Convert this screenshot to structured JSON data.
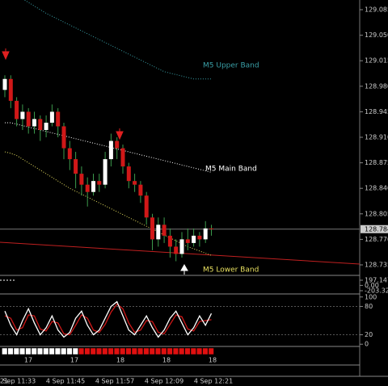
{
  "chart_data": {
    "type": "candlestick",
    "categories": [
      null,
      null,
      null,
      null,
      null,
      null,
      null,
      null,
      null,
      null,
      null,
      null,
      null,
      null,
      null,
      null,
      null,
      null,
      null,
      null,
      null,
      null,
      null,
      null,
      null,
      null,
      null,
      null,
      null,
      null,
      null,
      null,
      null,
      null,
      null,
      null
    ],
    "open": [
      128.975,
      128.99,
      128.96,
      128.935,
      128.945,
      128.925,
      128.935,
      128.92,
      128.93,
      128.945,
      128.925,
      128.895,
      128.88,
      128.86,
      128.845,
      128.835,
      128.85,
      128.845,
      128.88,
      128.905,
      128.895,
      128.87,
      128.85,
      128.845,
      128.83,
      128.8,
      128.77,
      128.79,
      128.775,
      128.76,
      128.75,
      128.77,
      128.765,
      128.775,
      128.77,
      128.785
    ],
    "high": [
      128.995,
      128.995,
      128.965,
      128.955,
      128.95,
      128.945,
      128.94,
      128.94,
      128.955,
      128.95,
      128.93,
      128.905,
      128.89,
      128.87,
      128.855,
      128.86,
      128.86,
      128.89,
      128.915,
      128.91,
      128.9,
      128.875,
      128.86,
      128.85,
      128.835,
      128.805,
      128.8,
      128.8,
      128.785,
      128.77,
      128.78,
      128.785,
      128.785,
      128.78,
      128.795,
      128.79
    ],
    "low": [
      128.965,
      128.95,
      128.925,
      128.92,
      128.915,
      128.915,
      128.905,
      128.91,
      128.925,
      128.91,
      128.88,
      128.865,
      128.84,
      128.83,
      128.815,
      128.83,
      128.835,
      128.84,
      128.87,
      128.88,
      128.86,
      128.84,
      128.835,
      128.82,
      128.79,
      128.755,
      128.76,
      128.765,
      128.745,
      128.74,
      128.745,
      128.755,
      128.76,
      128.76,
      128.765,
      128.775
    ],
    "close": [
      128.99,
      128.96,
      128.935,
      128.945,
      128.925,
      128.935,
      128.92,
      128.93,
      128.945,
      128.925,
      128.895,
      128.88,
      128.86,
      128.845,
      128.835,
      128.85,
      128.845,
      128.88,
      128.905,
      128.895,
      128.87,
      128.85,
      128.845,
      128.83,
      128.8,
      128.77,
      128.79,
      128.775,
      128.76,
      128.75,
      128.77,
      128.765,
      128.775,
      128.77,
      128.785,
      128.784
    ],
    "bands": [
      {
        "name": "M5 Upper Band",
        "color": "#3aa0a8",
        "values": [
          129.11,
          129.108,
          129.105,
          129.1,
          129.095,
          129.09,
          129.085,
          129.08,
          129.076,
          129.072,
          129.068,
          129.064,
          129.06,
          129.056,
          129.052,
          129.048,
          129.044,
          129.04,
          129.036,
          129.032,
          129.028,
          129.024,
          129.02,
          129.016,
          129.012,
          129.008,
          129.004,
          129.0,
          128.998,
          128.996,
          128.994,
          128.992,
          128.99,
          128.99,
          128.99,
          128.99
        ]
      },
      {
        "name": "M5 Main Band",
        "color": "#ffffff",
        "values": [
          128.93,
          128.93,
          128.928,
          128.926,
          128.924,
          128.922,
          128.92,
          128.918,
          128.916,
          128.914,
          128.912,
          128.91,
          128.908,
          128.906,
          128.904,
          128.902,
          128.9,
          128.898,
          128.896,
          128.894,
          128.892,
          128.89,
          128.888,
          128.886,
          128.884,
          128.882,
          128.88,
          128.878,
          128.876,
          128.874,
          128.872,
          128.87,
          128.868,
          128.866,
          128.864,
          128.862
        ]
      },
      {
        "name": "M5 Lower Band",
        "color": "#e8e060",
        "values": [
          128.89,
          128.888,
          128.885,
          128.88,
          128.875,
          128.87,
          128.865,
          128.86,
          128.855,
          128.85,
          128.845,
          128.84,
          128.836,
          128.832,
          128.828,
          128.824,
          128.82,
          128.816,
          128.812,
          128.808,
          128.804,
          128.8,
          128.796,
          128.792,
          128.788,
          128.784,
          128.78,
          128.776,
          128.772,
          128.768,
          128.764,
          128.76,
          128.757,
          128.754,
          128.751,
          128.748
        ]
      }
    ],
    "ylim": [
      128.7217,
      129.0983
    ],
    "yticks": [
      129.085,
      {
        "value": 129.05,
        "label": "129.050"
      },
      129.015,
      {
        "value": 128.98,
        "label": "128.980"
      },
      128.945,
      {
        "value": 128.91,
        "label": "128.910"
      },
      128.875,
      {
        "value": 128.84,
        "label": "128.840"
      },
      128.805,
      {
        "value": 128.77,
        "label": "128.770"
      },
      128.735
    ],
    "current_price": 128.784,
    "panel2": {
      "ylim": [
        -203.3209,
        197.1474
      ],
      "yticks": [
        197.1474,
        {
          "value": 0,
          "label": "0.00"
        },
        -203.3209
      ]
    },
    "oscillator": {
      "ylim": [
        -3,
        103
      ],
      "yticks": [
        100,
        80,
        20,
        0
      ],
      "main": [
        70,
        40,
        20,
        50,
        75,
        45,
        20,
        35,
        60,
        30,
        15,
        25,
        55,
        70,
        40,
        20,
        30,
        55,
        80,
        90,
        60,
        30,
        20,
        40,
        60,
        35,
        15,
        30,
        55,
        70,
        45,
        20,
        35,
        60,
        40,
        65
      ],
      "signal": [
        60,
        55,
        30,
        35,
        62,
        60,
        32,
        28,
        48,
        45,
        22,
        20,
        40,
        62,
        55,
        30,
        25,
        42,
        68,
        85,
        75,
        45,
        25,
        30,
        50,
        48,
        25,
        22,
        42,
        62,
        58,
        32,
        28,
        48,
        50,
        52
      ]
    },
    "bar_labels": [
      "17",
      "17",
      "18",
      "18",
      "18"
    ],
    "time_labels": [
      "21",
      "4 Sep 11:33",
      "4 Sep 11:45",
      "4 Sep 11:57",
      "4 Sep 12:09",
      "4 Sep 12:21"
    ]
  }
}
